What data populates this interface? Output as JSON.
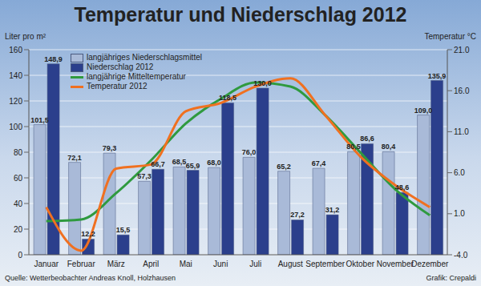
{
  "chart_data": {
    "type": "bar",
    "title": "Temperatur und Niederschlag 2012",
    "y_label": "Liter pro m²",
    "y2_label": "Temperatur °C",
    "annotations": [
      "Quelle: Wetterbeobachter Andreas Knoll, Holzhausen",
      "Grafik: Crepaldi"
    ],
    "categories": [
      "Januar",
      "Februar",
      "März",
      "April",
      "Mai",
      "Juni",
      "Juli",
      "August",
      "September",
      "Oktober",
      "November",
      "Dezember"
    ],
    "series": [
      {
        "name": "langjähriges Niederschlagsmittel",
        "type": "bar",
        "color": "#a9bad8",
        "data_labels": true,
        "values": [
          101.5,
          72.1,
          79.3,
          57.3,
          68.5,
          68.0,
          76.0,
          65.2,
          67.4,
          80.5,
          80.4,
          109.0
        ],
        "value_labels": [
          "101,5",
          "72,1",
          "79,3",
          "57,3",
          "68,5",
          "68,0",
          "76,0",
          "65,2",
          "67,4",
          "80,5",
          "80,4",
          "109,0"
        ]
      },
      {
        "name": "Niederschlag 2012",
        "type": "bar",
        "color": "#2b3f8c",
        "data_labels": true,
        "values": [
          148.9,
          12.2,
          15.5,
          66.7,
          65.9,
          118.5,
          130.0,
          27.2,
          31.2,
          86.6,
          48.6,
          135.9
        ],
        "value_labels": [
          "148,9",
          "12,2",
          "15,5",
          "66,7",
          "65,9",
          "118,5",
          "130,0",
          "27,2",
          "31,2",
          "86,6",
          "48,6",
          "135,9"
        ]
      },
      {
        "name": "langjährige Mitteltemperatur",
        "type": "line",
        "axis": "y2",
        "color": "#2f9a3f",
        "marker": "none",
        "line_style": "solid",
        "data_labels": false,
        "values": [
          0.1,
          0.3,
          3.5,
          7.5,
          12.0,
          15.0,
          17.0,
          16.5,
          13.0,
          8.5,
          4.0,
          0.8
        ]
      },
      {
        "name": "Temperatur 2012",
        "type": "line",
        "axis": "y2",
        "color": "#f07020",
        "marker": "none",
        "line_style": "solid",
        "data_labels": false,
        "values": [
          1.8,
          -3.5,
          6.5,
          7.0,
          13.5,
          14.5,
          16.5,
          17.5,
          13.0,
          8.0,
          4.5,
          1.8
        ]
      }
    ],
    "ylim": [
      0,
      160
    ],
    "yticks": [
      0,
      20,
      40,
      60,
      80,
      100,
      120,
      140,
      160
    ],
    "y2lim": [
      -4,
      21
    ],
    "y2ticks": [
      {
        "value": -4,
        "label": "-4.0"
      },
      {
        "value": 1,
        "label": "1.0"
      },
      {
        "value": 6,
        "label": "6.0"
      },
      {
        "value": 11,
        "label": "11.0"
      },
      {
        "value": 16,
        "label": "16.0"
      },
      {
        "value": 21,
        "label": "21.0"
      }
    ],
    "grid": true,
    "legend": "top-left"
  }
}
